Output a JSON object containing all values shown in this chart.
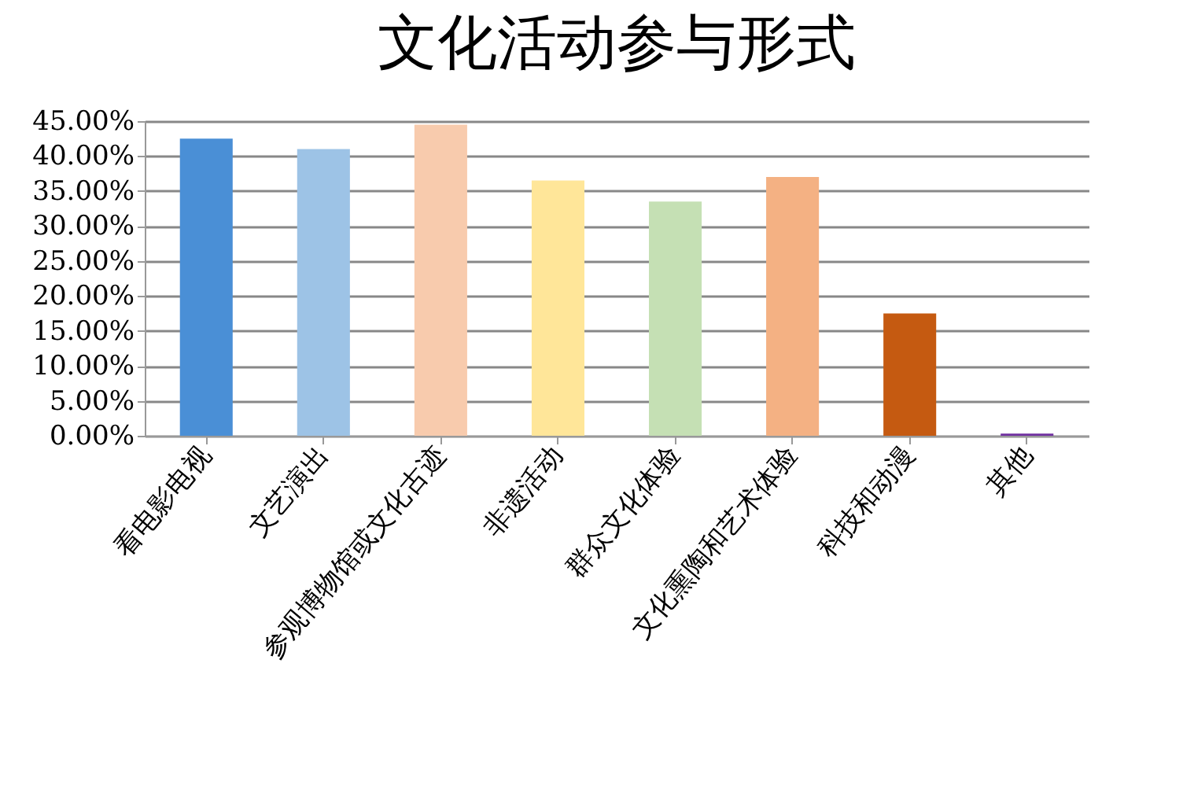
{
  "chart_data": {
    "type": "bar",
    "title": "文化活动参与形式",
    "categories": [
      "看电影电视",
      "文艺演出",
      "参观博物馆或文化古迹",
      "非遗活动",
      "群众文化体验",
      "文化熏陶和艺术体验",
      "科技和动漫",
      "其他"
    ],
    "values": [
      42.5,
      41,
      44.5,
      36.5,
      33.5,
      37,
      17.5,
      0.3
    ],
    "colors": [
      "#4a8fd6",
      "#9dc3e6",
      "#f8cbad",
      "#ffe699",
      "#c5e0b4",
      "#f4b183",
      "#c55a11",
      "#7030a0"
    ],
    "ylim": [
      0,
      45
    ],
    "yticks": [
      {
        "value": 0,
        "label": "0.00%"
      },
      {
        "value": 5,
        "label": "5.00%"
      },
      {
        "value": 10,
        "label": "10.00%"
      },
      {
        "value": 15,
        "label": "15.00%"
      },
      {
        "value": 20,
        "label": "20.00%"
      },
      {
        "value": 25,
        "label": "25.00%"
      },
      {
        "value": 30,
        "label": "30.00%"
      },
      {
        "value": 35,
        "label": "35.00%"
      },
      {
        "value": 40,
        "label": "40.00%"
      },
      {
        "value": 45,
        "label": "45.00%"
      }
    ],
    "grid": "y"
  }
}
